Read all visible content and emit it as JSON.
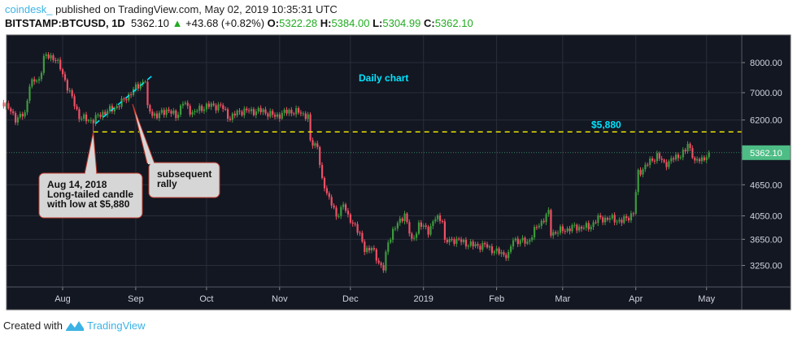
{
  "header": {
    "publisher": "coindesk_",
    "published_text": "published on TradingView.com, May 02, 2019 10:35:31 UTC",
    "symbol": "BITSTAMP:BTCUSD, 1D",
    "last": "5362.10",
    "change": "+43.68 (+0.82%)",
    "o_label": "O:",
    "o": "5322.28",
    "h_label": "H:",
    "h": "5384.00",
    "l_label": "L:",
    "l": "5304.99",
    "c_label": "C:",
    "c": "5362.10"
  },
  "footer": {
    "created_with": "Created with",
    "brand": "TradingView"
  },
  "colors": {
    "background": "#131722",
    "up": "#3d9a3d",
    "down": "#ef5064",
    "level_line": "#e8e400",
    "annotation": "#00e5ff",
    "last_price_tag": "#4dbd85"
  },
  "chart_data": {
    "type": "candlestick",
    "interval": "1D",
    "y_scale": "log",
    "grid": true,
    "ylim": [
      2950,
      9000
    ],
    "y_ticks": [
      "8000.00",
      "7000.00",
      "6200.00",
      "4650.00",
      "4050.00",
      "3650.00",
      "3250.00"
    ],
    "y_tick_values": [
      8000,
      7000,
      6200,
      4650,
      4050,
      3650,
      3250
    ],
    "x_ticks": [
      {
        "label": "Aug",
        "date": "2018-08-01"
      },
      {
        "label": "Sep",
        "date": "2018-09-01"
      },
      {
        "label": "Oct",
        "date": "2018-10-01"
      },
      {
        "label": "Nov",
        "date": "2018-11-01"
      },
      {
        "label": "Dec",
        "date": "2018-12-01"
      },
      {
        "label": "2019",
        "date": "2019-01-01"
      },
      {
        "label": "Feb",
        "date": "2019-02-01"
      },
      {
        "label": "Mar",
        "date": "2019-03-01"
      },
      {
        "label": "Apr",
        "date": "2019-04-01"
      },
      {
        "label": "May",
        "date": "2019-05-01"
      }
    ],
    "last_price": "5362.10",
    "approx_closes": [
      [
        "2018-07-07",
        6700
      ],
      [
        "2018-07-12",
        6250
      ],
      [
        "2018-07-16",
        6350
      ],
      [
        "2018-07-18",
        7300
      ],
      [
        "2018-07-22",
        7400
      ],
      [
        "2018-07-24",
        8200
      ],
      [
        "2018-07-27",
        8200
      ],
      [
        "2018-07-29",
        8150
      ],
      [
        "2018-08-01",
        7600
      ],
      [
        "2018-08-04",
        7000
      ],
      [
        "2018-08-08",
        6300
      ],
      [
        "2018-08-11",
        6200
      ],
      [
        "2018-08-14",
        6200
      ],
      [
        "2018-08-18",
        6400
      ],
      [
        "2018-08-22",
        6500
      ],
      [
        "2018-08-26",
        6700
      ],
      [
        "2018-08-30",
        7000
      ],
      [
        "2018-09-03",
        7300
      ],
      [
        "2018-09-05",
        7400
      ],
      [
        "2018-09-06",
        6500
      ],
      [
        "2018-09-10",
        6300
      ],
      [
        "2018-09-14",
        6500
      ],
      [
        "2018-09-18",
        6300
      ],
      [
        "2018-09-21",
        6700
      ],
      [
        "2018-09-25",
        6400
      ],
      [
        "2018-10-01",
        6600
      ],
      [
        "2018-10-07",
        6600
      ],
      [
        "2018-10-11",
        6250
      ],
      [
        "2018-10-15",
        6450
      ],
      [
        "2018-10-20",
        6450
      ],
      [
        "2018-10-25",
        6450
      ],
      [
        "2018-10-30",
        6300
      ],
      [
        "2018-11-05",
        6450
      ],
      [
        "2018-11-10",
        6400
      ],
      [
        "2018-11-13",
        6300
      ],
      [
        "2018-11-14",
        5600
      ],
      [
        "2018-11-17",
        5550
      ],
      [
        "2018-11-19",
        4700
      ],
      [
        "2018-11-21",
        4500
      ],
      [
        "2018-11-23",
        4300
      ],
      [
        "2018-11-25",
        4000
      ],
      [
        "2018-11-28",
        4300
      ],
      [
        "2018-11-30",
        4000
      ],
      [
        "2018-12-03",
        3900
      ],
      [
        "2018-12-07",
        3500
      ],
      [
        "2018-12-10",
        3500
      ],
      [
        "2018-12-13",
        3300
      ],
      [
        "2018-12-15",
        3200
      ],
      [
        "2018-12-17",
        3600
      ],
      [
        "2018-12-19",
        3800
      ],
      [
        "2018-12-22",
        3950
      ],
      [
        "2018-12-24",
        4100
      ],
      [
        "2018-12-27",
        3600
      ],
      [
        "2018-12-30",
        3900
      ],
      [
        "2019-01-03",
        3800
      ],
      [
        "2019-01-06",
        4000
      ],
      [
        "2019-01-09",
        4000
      ],
      [
        "2019-01-10",
        3600
      ],
      [
        "2019-01-14",
        3650
      ],
      [
        "2019-01-18",
        3600
      ],
      [
        "2019-01-22",
        3550
      ],
      [
        "2019-01-27",
        3550
      ],
      [
        "2019-02-01",
        3450
      ],
      [
        "2019-02-06",
        3400
      ],
      [
        "2019-02-08",
        3650
      ],
      [
        "2019-02-14",
        3600
      ],
      [
        "2019-02-18",
        3850
      ],
      [
        "2019-02-23",
        4100
      ],
      [
        "2019-02-24",
        3750
      ],
      [
        "2019-03-01",
        3800
      ],
      [
        "2019-03-06",
        3850
      ],
      [
        "2019-03-12",
        3850
      ],
      [
        "2019-03-16",
        4000
      ],
      [
        "2019-03-22",
        4000
      ],
      [
        "2019-03-26",
        3950
      ],
      [
        "2019-03-31",
        4100
      ],
      [
        "2019-04-02",
        4900
      ],
      [
        "2019-04-05",
        5050
      ],
      [
        "2019-04-10",
        5300
      ],
      [
        "2019-04-13",
        5100
      ],
      [
        "2019-04-18",
        5250
      ],
      [
        "2019-04-22",
        5400
      ],
      [
        "2019-04-23",
        5550
      ],
      [
        "2019-04-25",
        5350
      ],
      [
        "2019-04-26",
        5150
      ],
      [
        "2019-04-29",
        5200
      ],
      [
        "2019-05-02",
        5362.1
      ]
    ],
    "annotations": {
      "level": {
        "price": 5880,
        "label": "$5,880"
      },
      "title_note": "Daily chart",
      "trendline": {
        "from": [
          "2018-08-15",
          6100
        ],
        "to": [
          "2018-09-08",
          7550
        ]
      },
      "callout_low": {
        "lines": [
          "Aug 14, 2018",
          "Long-tailed candle",
          "with low at $5,880"
        ],
        "date": "2018-08-14",
        "price": 5880
      },
      "callout_rally": {
        "lines": [
          "subsequent",
          "rally"
        ],
        "date": "2018-09-04",
        "price": 6900
      }
    }
  }
}
